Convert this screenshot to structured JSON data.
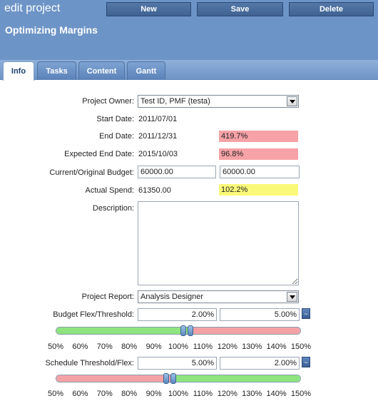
{
  "header": {
    "app_title": "edit project",
    "project_title": "Optimizing Margins",
    "buttons": {
      "new": "New",
      "save": "Save",
      "delete": "Delete"
    }
  },
  "tabs": [
    "Info",
    "Tasks",
    "Content",
    "Gantt"
  ],
  "form": {
    "project_owner": {
      "label": "Project Owner:",
      "value": "Test ID, PMF (testa)"
    },
    "start_date": {
      "label": "Start Date:",
      "value": "2011/07/01"
    },
    "end_date": {
      "label": "End Date:",
      "value": "2011/12/31",
      "indicator": "419.7%"
    },
    "expected_end_date": {
      "label": "Expected End Date:",
      "value": "2015/10/03",
      "indicator": "96.8%"
    },
    "budget": {
      "label": "Current/Original Budget:",
      "current": "60000.00",
      "original": "60000.00"
    },
    "actual_spend": {
      "label": "Actual Spend:",
      "value": "61350.00",
      "indicator": "102.2%"
    },
    "description": {
      "label": "Description:",
      "value": ""
    },
    "project_report": {
      "label": "Project Report:",
      "value": "Analysis Designer"
    },
    "budget_flex": {
      "label": "Budget Flex/Threshold:",
      "flex": "2.00%",
      "threshold": "5.00%",
      "toggle": "~"
    },
    "schedule_threshold": {
      "label": "Schedule Threshold/Flex:",
      "threshold": "5.00%",
      "flex": "2.00%",
      "toggle": "~"
    }
  },
  "slider_scale": [
    "50%",
    "60%",
    "70%",
    "80%",
    "90%",
    "100%",
    "110%",
    "120%",
    "130%",
    "140%",
    "150%"
  ],
  "budget_slider": {
    "knob_values": [
      102,
      105
    ]
  },
  "schedule_slider": {
    "knob_values": [
      95,
      98
    ]
  },
  "colors": {
    "header_bg": "#6d94c7",
    "indicator_red": "#f6a2a6",
    "indicator_yellow": "#fbf979",
    "slider_green": "#8ee47e",
    "slider_pink": "#f4a2a6"
  }
}
